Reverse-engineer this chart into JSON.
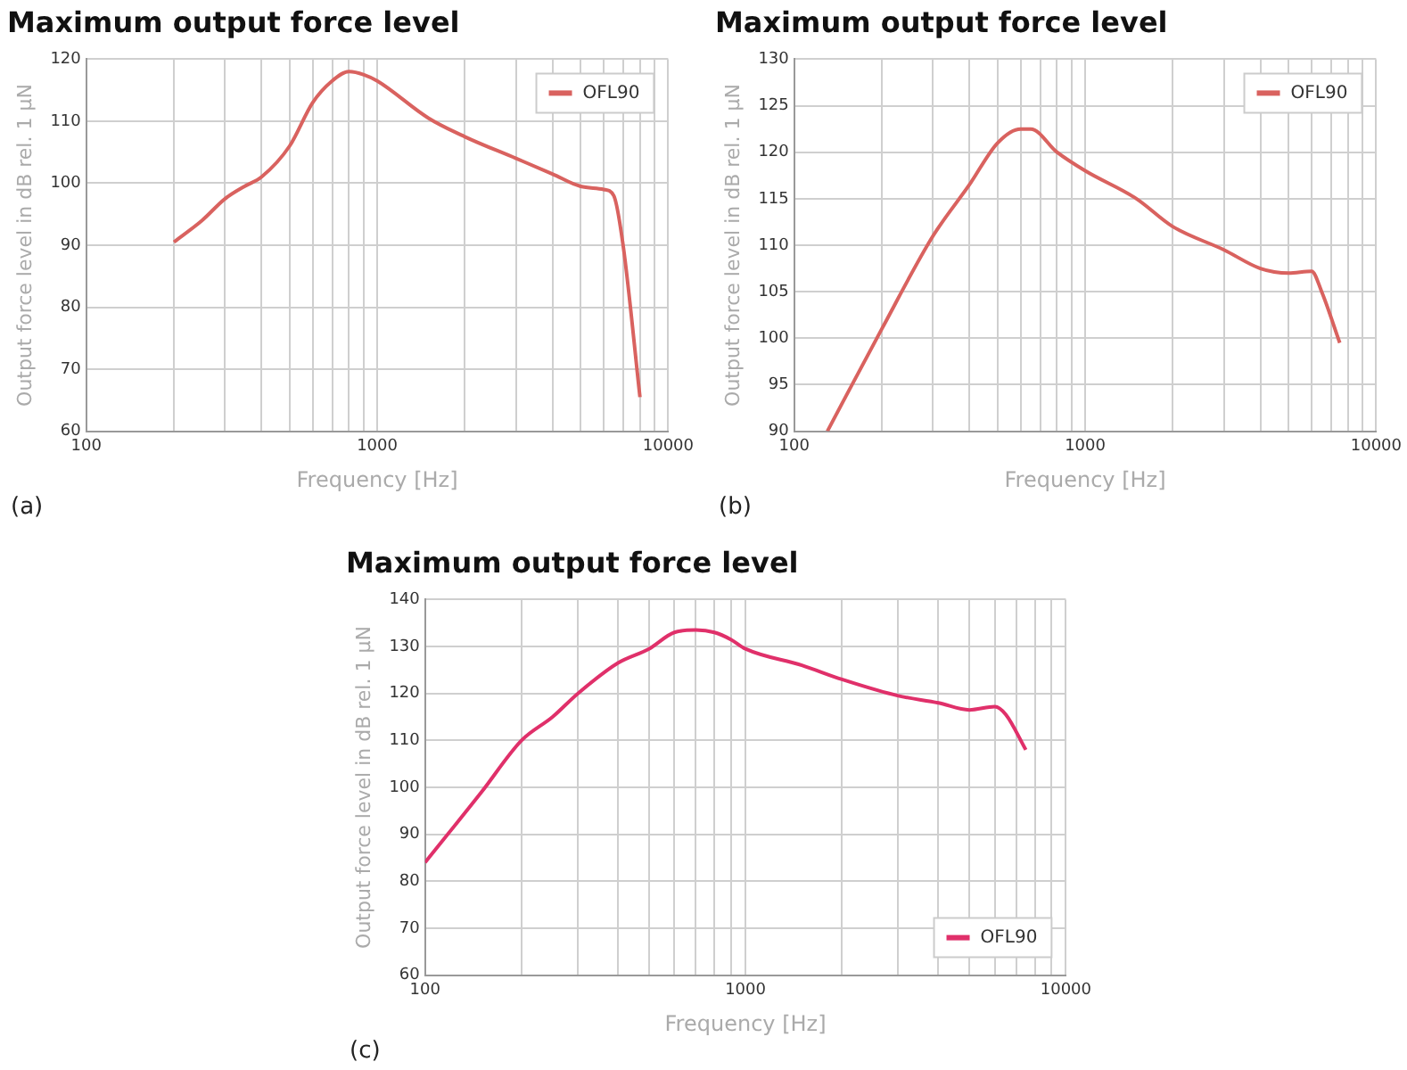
{
  "chart_data": [
    {
      "type": "line",
      "title": "Maximum output force level",
      "xlabel": "Frequency [Hz]",
      "ylabel": "Output force level in dB rel. 1 µN",
      "annotations": [
        "(a)"
      ],
      "log": "x",
      "grid": true,
      "legend": "top right",
      "marker": "none",
      "line_style": "solid",
      "xlim": [
        100,
        10000
      ],
      "ylim": [
        60,
        120
      ],
      "xticks": [
        100,
        {
          "value": 200,
          "label": null
        },
        {
          "value": 300,
          "label": null
        },
        {
          "value": 400,
          "label": null
        },
        {
          "value": 500,
          "label": null
        },
        {
          "value": 600,
          "label": null
        },
        {
          "value": 700,
          "label": null
        },
        {
          "value": 800,
          "label": null
        },
        {
          "value": 900,
          "label": null
        },
        1000,
        {
          "value": 2000,
          "label": null
        },
        {
          "value": 3000,
          "label": null
        },
        {
          "value": 4000,
          "label": null
        },
        {
          "value": 5000,
          "label": null
        },
        {
          "value": 6000,
          "label": null
        },
        {
          "value": 7000,
          "label": null
        },
        {
          "value": 8000,
          "label": null
        },
        {
          "value": 9000,
          "label": null
        },
        10000
      ],
      "yticks": [
        60,
        70,
        80,
        90,
        100,
        110,
        120
      ],
      "series": [
        {
          "name": "OFL90",
          "color": "#d9625f",
          "x": [
            200,
            250,
            300,
            350,
            400,
            500,
            600,
            700,
            800,
            900,
            1000,
            1500,
            2000,
            3000,
            4000,
            5000,
            6000,
            6500,
            7000,
            8000
          ],
          "values": [
            90.5,
            94,
            97.5,
            99.5,
            101,
            106,
            113,
            116.5,
            118,
            117.5,
            116.5,
            110.5,
            107.5,
            104,
            101.5,
            99.5,
            99,
            98,
            90,
            65.5
          ]
        }
      ]
    },
    {
      "type": "line",
      "title": "Maximum output force level",
      "xlabel": "Frequency [Hz]",
      "ylabel": "Output force level in dB rel. 1 µN",
      "annotations": [
        "(b)"
      ],
      "log": "x",
      "grid": true,
      "legend": "top right",
      "marker": "none",
      "line_style": "solid",
      "xlim": [
        100,
        10000
      ],
      "ylim": [
        90,
        130
      ],
      "xticks": [
        100,
        {
          "value": 200,
          "label": null
        },
        {
          "value": 300,
          "label": null
        },
        {
          "value": 400,
          "label": null
        },
        {
          "value": 500,
          "label": null
        },
        {
          "value": 600,
          "label": null
        },
        {
          "value": 700,
          "label": null
        },
        {
          "value": 800,
          "label": null
        },
        {
          "value": 900,
          "label": null
        },
        1000,
        {
          "value": 2000,
          "label": null
        },
        {
          "value": 3000,
          "label": null
        },
        {
          "value": 4000,
          "label": null
        },
        {
          "value": 5000,
          "label": null
        },
        {
          "value": 6000,
          "label": null
        },
        {
          "value": 7000,
          "label": null
        },
        {
          "value": 8000,
          "label": null
        },
        {
          "value": 9000,
          "label": null
        },
        10000
      ],
      "yticks": [
        90,
        95,
        100,
        105,
        110,
        115,
        120,
        125,
        130
      ],
      "series": [
        {
          "name": "OFL90",
          "color": "#d9625f",
          "x": [
            130,
            200,
            300,
            400,
            500,
            600,
            650,
            800,
            1000,
            1500,
            2000,
            3000,
            4000,
            5000,
            6000,
            6500,
            7500
          ],
          "values": [
            90,
            101,
            111,
            116.5,
            121,
            122.5,
            122.5,
            120,
            118,
            115,
            112,
            109.5,
            107.5,
            107,
            107.2,
            105,
            99.5
          ]
        }
      ]
    },
    {
      "type": "line",
      "title": "Maximum output force level",
      "xlabel": "Frequency [Hz]",
      "ylabel": "Output force level in dB rel. 1 µN",
      "annotations": [
        "(c)"
      ],
      "log": "x",
      "grid": true,
      "legend": "bottom right",
      "marker": "none",
      "line_style": "solid",
      "xlim": [
        100,
        10000
      ],
      "ylim": [
        60,
        140
      ],
      "xticks": [
        100,
        {
          "value": 200,
          "label": null
        },
        {
          "value": 300,
          "label": null
        },
        {
          "value": 400,
          "label": null
        },
        {
          "value": 500,
          "label": null
        },
        {
          "value": 600,
          "label": null
        },
        {
          "value": 700,
          "label": null
        },
        {
          "value": 800,
          "label": null
        },
        {
          "value": 900,
          "label": null
        },
        1000,
        {
          "value": 2000,
          "label": null
        },
        {
          "value": 3000,
          "label": null
        },
        {
          "value": 4000,
          "label": null
        },
        {
          "value": 5000,
          "label": null
        },
        {
          "value": 6000,
          "label": null
        },
        {
          "value": 7000,
          "label": null
        },
        {
          "value": 8000,
          "label": null
        },
        {
          "value": 9000,
          "label": null
        },
        10000
      ],
      "yticks": [
        60,
        70,
        80,
        90,
        100,
        110,
        120,
        130,
        140
      ],
      "series": [
        {
          "name": "OFL90",
          "color": "#e0306a",
          "x": [
            100,
            150,
            200,
            250,
            300,
            400,
            500,
            600,
            700,
            800,
            900,
            1000,
            1500,
            2000,
            3000,
            4000,
            5000,
            6000,
            6500,
            7500
          ],
          "values": [
            84,
            99,
            110,
            115,
            120,
            126.5,
            129.5,
            133,
            133.5,
            133,
            131.5,
            129.5,
            126,
            123,
            119.5,
            118,
            116.5,
            117.2,
            115.5,
            108
          ]
        }
      ]
    }
  ]
}
